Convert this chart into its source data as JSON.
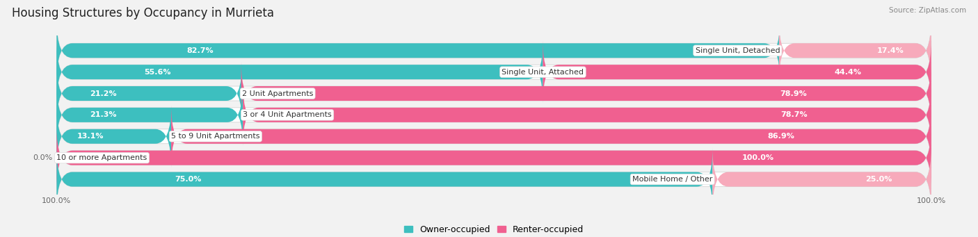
{
  "title": "Housing Structures by Occupancy in Murrieta",
  "source": "Source: ZipAtlas.com",
  "categories": [
    "Single Unit, Detached",
    "Single Unit, Attached",
    "2 Unit Apartments",
    "3 or 4 Unit Apartments",
    "5 to 9 Unit Apartments",
    "10 or more Apartments",
    "Mobile Home / Other"
  ],
  "owner_pct": [
    82.7,
    55.6,
    21.2,
    21.3,
    13.1,
    0.0,
    75.0
  ],
  "renter_pct": [
    17.4,
    44.4,
    78.9,
    78.7,
    86.9,
    100.0,
    25.0
  ],
  "owner_color": "#3DBFBF",
  "renter_color_bright": "#F06090",
  "renter_color_light": "#F7AABB",
  "background_color": "#f2f2f2",
  "row_bg_color": "#e8e8e8",
  "title_fontsize": 12,
  "label_fontsize": 8,
  "pct_fontsize": 8,
  "tick_fontsize": 8,
  "bar_height": 0.68,
  "legend_fontsize": 9,
  "owner_label_color": "white",
  "owner_label_outside_color": "#666666",
  "renter_label_color": "white",
  "renter_label_outside_color": "#666666",
  "renter_bright_rows": [
    1,
    2,
    3,
    4,
    5
  ],
  "renter_light_rows": [
    0,
    6
  ]
}
